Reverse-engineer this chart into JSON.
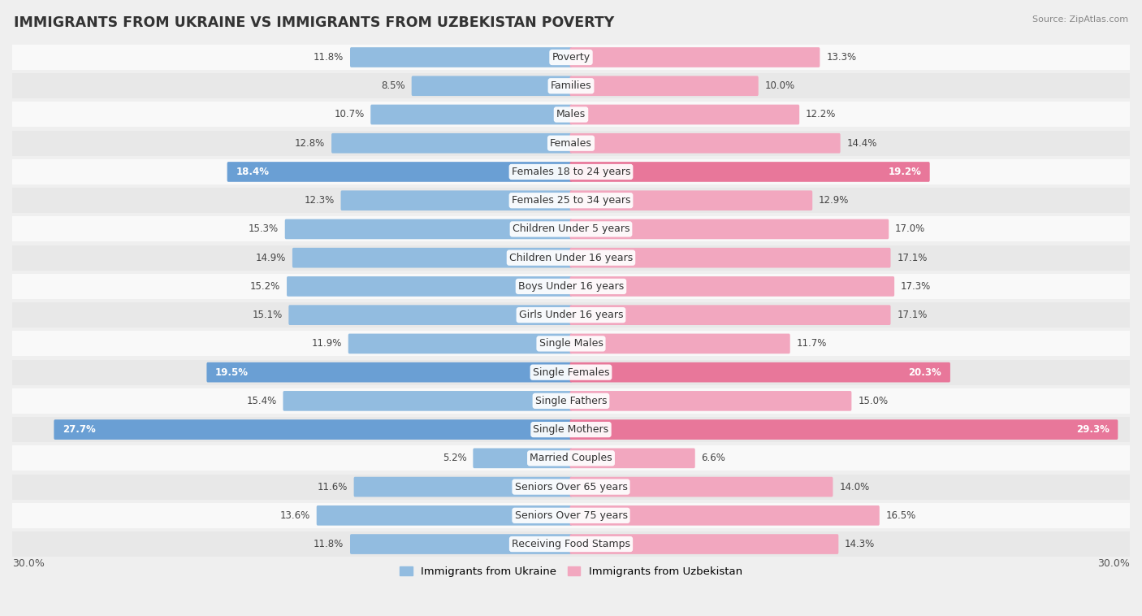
{
  "title": "IMMIGRANTS FROM UKRAINE VS IMMIGRANTS FROM UZBEKISTAN POVERTY",
  "source": "Source: ZipAtlas.com",
  "categories": [
    "Poverty",
    "Families",
    "Males",
    "Females",
    "Females 18 to 24 years",
    "Females 25 to 34 years",
    "Children Under 5 years",
    "Children Under 16 years",
    "Boys Under 16 years",
    "Girls Under 16 years",
    "Single Males",
    "Single Females",
    "Single Fathers",
    "Single Mothers",
    "Married Couples",
    "Seniors Over 65 years",
    "Seniors Over 75 years",
    "Receiving Food Stamps"
  ],
  "ukraine_values": [
    11.8,
    8.5,
    10.7,
    12.8,
    18.4,
    12.3,
    15.3,
    14.9,
    15.2,
    15.1,
    11.9,
    19.5,
    15.4,
    27.7,
    5.2,
    11.6,
    13.6,
    11.8
  ],
  "uzbekistan_values": [
    13.3,
    10.0,
    12.2,
    14.4,
    19.2,
    12.9,
    17.0,
    17.1,
    17.3,
    17.1,
    11.7,
    20.3,
    15.0,
    29.3,
    6.6,
    14.0,
    16.5,
    14.3
  ],
  "ukraine_color": "#92bce0",
  "uzbekistan_color": "#f2a7bf",
  "ukraine_highlight_color": "#6a9fd4",
  "uzbekistan_highlight_color": "#e8779a",
  "highlight_rows": [
    4,
    11,
    13
  ],
  "axis_max": 30.0,
  "bg_color": "#efefef",
  "row_bg_even": "#f9f9f9",
  "row_bg_odd": "#e8e8e8",
  "label_font_size": 9.0,
  "title_font_size": 12.5,
  "value_font_size": 8.5
}
